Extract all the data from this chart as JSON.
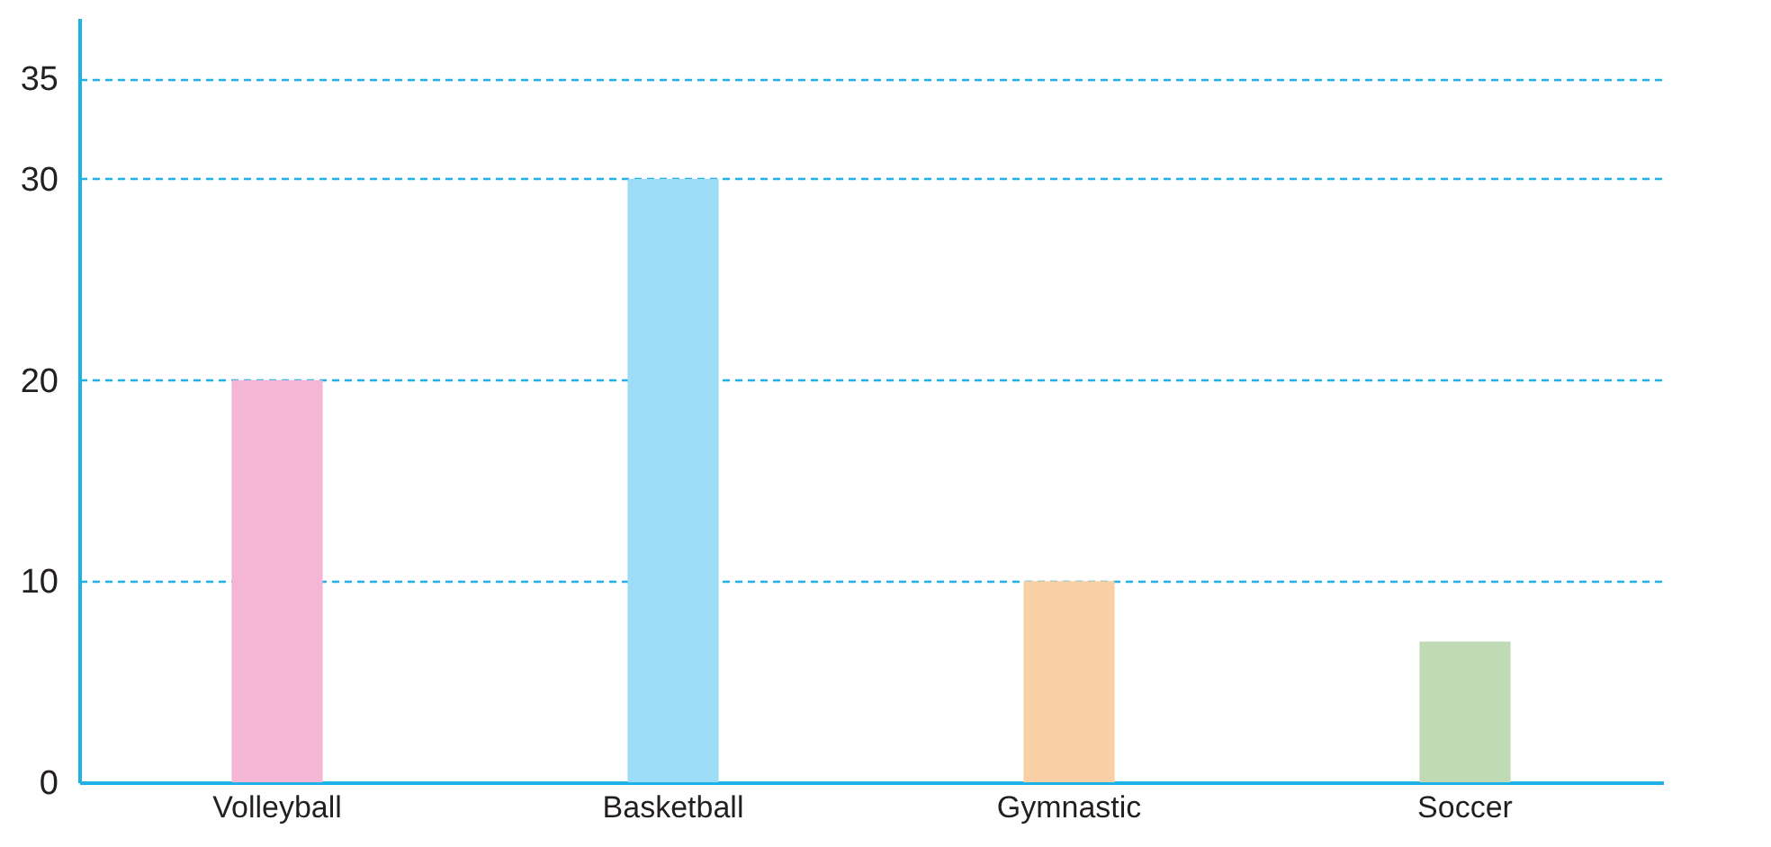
{
  "chart_data": {
    "type": "bar",
    "categories": [
      "Volleyball",
      "Basketball",
      "Gymnastic",
      "Soccer"
    ],
    "values": [
      20,
      30,
      10,
      7
    ],
    "colors": [
      "#f4b6d4",
      "#9ddcf7",
      "#f9cfa5",
      "#c0dab6"
    ],
    "ylim": [
      0,
      38
    ],
    "yticks": [
      0,
      10,
      20,
      30,
      35
    ],
    "grid": "y"
  }
}
